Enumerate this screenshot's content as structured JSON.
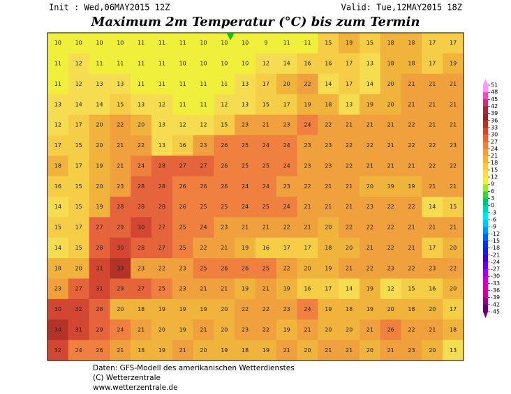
{
  "header": {
    "init": "Init : Wed,06MAY2015 12Z",
    "valid": "Valid: Tue,12MAY2015 18Z",
    "title": "Maximum 2m Temperatur (°C) bis zum Termin"
  },
  "map": {
    "grid": [
      [
        10,
        10,
        10,
        10,
        11,
        11,
        11,
        10,
        10,
        10,
        9,
        11,
        11,
        15,
        19,
        15,
        18,
        18,
        17,
        17
      ],
      [
        11,
        12,
        11,
        11,
        11,
        11,
        10,
        10,
        10,
        10,
        12,
        14,
        16,
        16,
        17,
        13,
        18,
        18,
        17,
        19
      ],
      [
        11,
        12,
        13,
        13,
        11,
        11,
        11,
        11,
        11,
        13,
        17,
        20,
        22,
        14,
        17,
        14,
        20,
        21,
        21,
        21
      ],
      [
        13,
        14,
        14,
        15,
        13,
        12,
        11,
        11,
        12,
        13,
        15,
        17,
        19,
        18,
        13,
        19,
        20,
        21,
        21,
        21
      ],
      [
        12,
        17,
        20,
        22,
        20,
        13,
        12,
        12,
        15,
        23,
        21,
        23,
        24,
        22,
        21,
        21,
        21,
        22,
        21,
        21
      ],
      [
        17,
        15,
        20,
        21,
        22,
        13,
        16,
        23,
        26,
        25,
        24,
        24,
        23,
        23,
        22,
        22,
        21,
        22,
        22,
        23
      ],
      [
        18,
        17,
        19,
        21,
        24,
        28,
        27,
        27,
        26,
        25,
        25,
        24,
        23,
        23,
        22,
        21,
        21,
        21,
        22,
        22
      ],
      [
        16,
        15,
        20,
        23,
        28,
        28,
        26,
        26,
        26,
        24,
        24,
        23,
        22,
        21,
        21,
        20,
        19,
        19,
        21,
        21
      ],
      [
        14,
        15,
        19,
        28,
        28,
        28,
        26,
        25,
        25,
        24,
        25,
        24,
        21,
        21,
        21,
        23,
        22,
        22,
        14,
        15
      ],
      [
        15,
        17,
        27,
        29,
        30,
        27,
        25,
        24,
        23,
        21,
        21,
        22,
        21,
        20,
        22,
        22,
        22,
        21,
        21,
        21
      ],
      [
        14,
        15,
        28,
        30,
        28,
        27,
        25,
        22,
        21,
        19,
        16,
        17,
        17,
        18,
        20,
        21,
        22,
        21,
        17,
        20
      ],
      [
        18,
        20,
        31,
        33,
        23,
        22,
        23,
        25,
        26,
        26,
        25,
        22,
        20,
        19,
        21,
        22,
        23,
        22,
        23,
        22
      ],
      [
        23,
        27,
        31,
        29,
        27,
        25,
        23,
        21,
        21,
        19,
        21,
        19,
        16,
        17,
        14,
        19,
        12,
        15,
        16,
        20
      ],
      [
        30,
        32,
        28,
        20,
        18,
        19,
        19,
        19,
        20,
        22,
        22,
        23,
        24,
        19,
        18,
        19,
        20,
        18,
        20,
        17
      ],
      [
        34,
        31,
        29,
        24,
        21,
        20,
        19,
        21,
        20,
        23,
        22,
        19,
        21,
        20,
        20,
        21,
        26,
        22,
        21,
        18
      ],
      [
        32,
        24,
        26,
        21,
        18,
        19,
        21,
        20,
        19,
        18,
        19,
        21,
        20,
        21,
        21,
        20,
        21,
        23,
        20,
        13
      ]
    ],
    "colorbar": {
      "ticks": [
        51,
        48,
        45,
        42,
        39,
        36,
        33,
        30,
        27,
        24,
        21,
        18,
        15,
        12,
        9,
        6,
        3,
        0,
        -3,
        -6,
        -9,
        -12,
        -15,
        -18,
        -21,
        -24,
        -27,
        -30,
        -33,
        -36,
        -39,
        -42,
        -45
      ],
      "colors": [
        "#ff96ff",
        "#f050b4",
        "#c83278",
        "#a0283c",
        "#8c2828",
        "#b43228",
        "#d24632",
        "#e6643c",
        "#f08040",
        "#f0a03c",
        "#f0b43c",
        "#f5cd46",
        "#f5dc50",
        "#f0f03c",
        "#a0e632",
        "#3cd23c",
        "#00be78",
        "#00d2b4",
        "#00e6e6",
        "#00c8f0",
        "#0096f0",
        "#0064f0",
        "#0032e6",
        "#1e1ec8",
        "#3c00c8",
        "#6400dc",
        "#a000f0",
        "#c800c8",
        "#dc00a0",
        "#c80096",
        "#960078",
        "#64006e"
      ]
    }
  },
  "footer": {
    "line1": "Daten: GFS-Modell des amerikanischen Wetterdienstes",
    "line2": "(C) Wetterzentrale",
    "line3": "www.wetterzentrale.de"
  }
}
